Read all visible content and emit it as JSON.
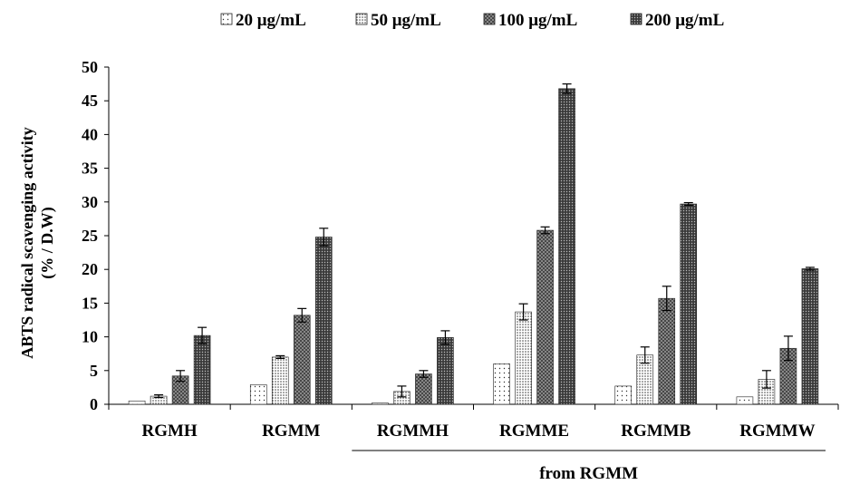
{
  "chart_data": {
    "type": "bar",
    "title": "",
    "xlabel": "",
    "ylabel": "ABTS radical scavenging activity",
    "ylabel_line2": "(% / D.W)",
    "ylim": [
      0,
      50
    ],
    "yticks": [
      0,
      5,
      10,
      15,
      20,
      25,
      30,
      35,
      40,
      45,
      50
    ],
    "grid": false,
    "legend_position": "top",
    "categories": [
      "RGMH",
      "RGMM",
      "RGMMH",
      "RGMME",
      "RGMMB",
      "RGMMW"
    ],
    "group_bracket": {
      "label": "from RGMM",
      "from_category": "RGMMH",
      "to_category": "RGMMW"
    },
    "series": [
      {
        "name": "20 μg/mL",
        "pattern": "dots-sparse",
        "values": [
          0.5,
          2.9,
          0.2,
          6.0,
          2.7,
          1.1
        ],
        "errors": [
          0.0,
          0.0,
          0.0,
          0.0,
          0.0,
          0.0
        ]
      },
      {
        "name": "50  μg/mL",
        "pattern": "dots-dense",
        "values": [
          1.2,
          7.0,
          1.9,
          13.7,
          7.3,
          3.7
        ],
        "errors": [
          0.2,
          0.2,
          0.8,
          1.2,
          1.2,
          1.3
        ]
      },
      {
        "name": "100  μg/mL",
        "pattern": "crosshatch",
        "values": [
          4.2,
          13.2,
          4.5,
          25.8,
          15.7,
          8.3
        ],
        "errors": [
          0.8,
          1.0,
          0.5,
          0.5,
          1.8,
          1.8
        ]
      },
      {
        "name": "200  μg/mL",
        "pattern": "dark-dots",
        "values": [
          10.2,
          24.8,
          9.9,
          46.8,
          29.7,
          20.1
        ],
        "errors": [
          1.2,
          1.3,
          1.0,
          0.7,
          0.2,
          0.2
        ]
      }
    ],
    "colors": {
      "axis": "#000000",
      "bar_edge": "#222222",
      "dark_fill": "#3a3a3a",
      "background": "#ffffff"
    }
  }
}
